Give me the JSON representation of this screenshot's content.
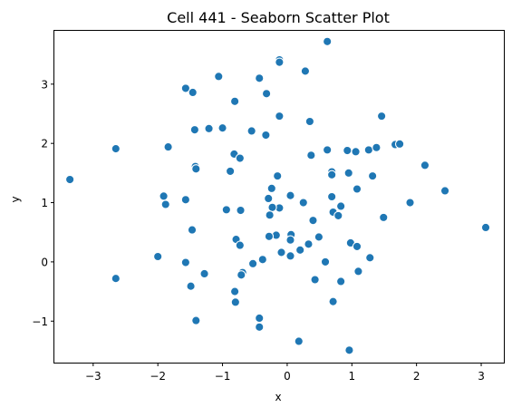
{
  "chart_data": {
    "type": "scatter",
    "title": "Cell 441 - Seaborn Scatter Plot",
    "xlabel": "x",
    "ylabel": "y",
    "xlim": [
      -3.6,
      3.35
    ],
    "ylim": [
      -1.7,
      3.9
    ],
    "xticks": [
      -3,
      -2,
      -1,
      0,
      1,
      2,
      3
    ],
    "xtick_labels": [
      "−3",
      "−2",
      "−1",
      "0",
      "1",
      "2",
      "3"
    ],
    "yticks": [
      -1,
      0,
      1,
      2,
      3
    ],
    "ytick_labels": [
      "−1",
      "0",
      "1",
      "2",
      "3"
    ],
    "grid": false,
    "legend": false,
    "color": "#1f77b4",
    "x": [
      0.62,
      -0.12,
      -0.12,
      0.28,
      -1.06,
      -0.43,
      -1.57,
      -1.46,
      -0.81,
      -0.32,
      -0.12,
      1.46,
      0.35,
      -1.43,
      -1.21,
      -1.0,
      -0.55,
      -0.33,
      0.62,
      0.93,
      1.06,
      1.26,
      1.38,
      1.67,
      1.74,
      -2.65,
      -1.84,
      -0.82,
      0.37,
      2.13,
      -0.73,
      -1.42,
      -1.41,
      -0.88,
      0.69,
      0.69,
      0.95,
      -3.36,
      -0.15,
      1.08,
      -1.91,
      -0.24,
      1.32,
      2.44,
      -1.57,
      -1.88,
      0.69,
      -0.12,
      -0.29,
      -0.23,
      0.05,
      0.25,
      1.9,
      -0.94,
      -0.72,
      0.71,
      0.83,
      0.79,
      1.49,
      0.4,
      -1.47,
      -0.27,
      0.06,
      3.07,
      -0.79,
      -0.17,
      -0.28,
      -0.73,
      0.49,
      0.05,
      0.98,
      0.33,
      0.2,
      1.08,
      -0.09,
      0.05,
      -0.53,
      -0.38,
      -2.0,
      1.28,
      -1.57,
      -2.65,
      -0.69,
      -1.28,
      -0.71,
      -1.49,
      1.1,
      0.83,
      -0.81,
      -0.8,
      0.43,
      0.71,
      -0.43,
      -1.41,
      -0.43,
      0.18,
      0.96,
      0.59
    ],
    "y": [
      3.72,
      3.41,
      3.37,
      3.22,
      3.13,
      3.1,
      2.93,
      2.86,
      2.71,
      2.84,
      2.46,
      2.46,
      2.37,
      2.23,
      2.25,
      2.26,
      2.21,
      2.14,
      1.89,
      1.88,
      1.86,
      1.89,
      1.93,
      1.98,
      1.99,
      1.91,
      1.94,
      1.82,
      1.8,
      1.63,
      1.75,
      1.61,
      1.57,
      1.53,
      1.52,
      1.47,
      1.5,
      1.39,
      1.45,
      1.23,
      1.11,
      1.24,
      1.45,
      1.2,
      1.05,
      0.97,
      1.1,
      0.91,
      1.07,
      0.92,
      1.12,
      1.0,
      1.0,
      0.88,
      0.87,
      0.84,
      0.94,
      0.78,
      0.75,
      0.7,
      0.54,
      0.79,
      0.46,
      0.58,
      0.38,
      0.45,
      0.43,
      0.28,
      0.42,
      0.37,
      0.32,
      0.3,
      0.2,
      0.26,
      0.16,
      0.1,
      -0.03,
      0.04,
      0.09,
      0.07,
      -0.01,
      -0.28,
      -0.18,
      -0.2,
      -0.22,
      -0.41,
      -0.16,
      -0.33,
      -0.5,
      -0.68,
      -0.3,
      -0.67,
      -0.95,
      -0.99,
      -1.1,
      -1.34,
      -1.49,
      0.0
    ]
  }
}
